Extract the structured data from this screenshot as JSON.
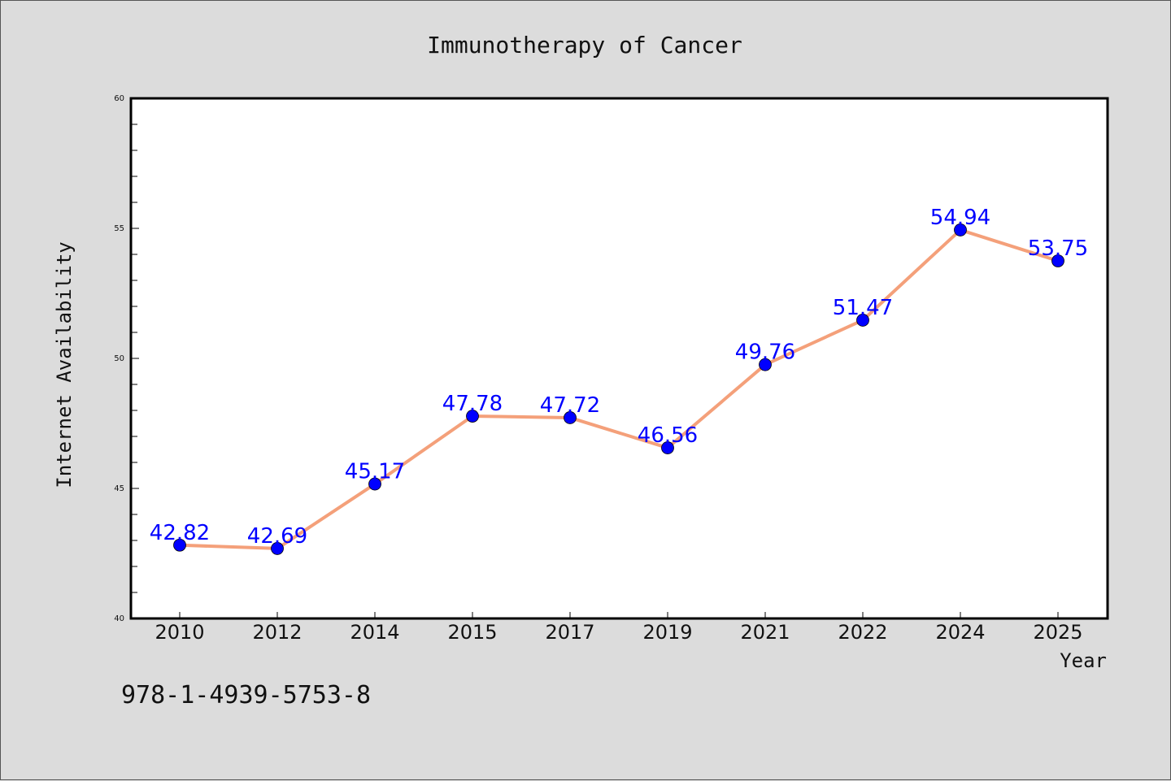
{
  "chart_data": {
    "type": "line",
    "title": "Immunotherapy of Cancer",
    "xlabel": "Year",
    "ylabel": "Internet Availability",
    "categories": [
      "2010",
      "2012",
      "2014",
      "2015",
      "2017",
      "2019",
      "2021",
      "2022",
      "2024",
      "2025"
    ],
    "series": [
      {
        "values": [
          42.82,
          42.69,
          45.17,
          47.78,
          47.72,
          46.56,
          49.76,
          51.47,
          54.94,
          53.75
        ],
        "labels": [
          "42.82",
          "42.69",
          "45.17",
          "47.78",
          "47.72",
          "46.56",
          "49.76",
          "51.47",
          "54.94",
          "53.75"
        ],
        "line_color": "#f4a07a",
        "marker_color": "#0000ff",
        "label_color": "#0000ff"
      }
    ],
    "ylim": [
      40,
      60
    ],
    "yticks": [
      "40",
      "45",
      "50",
      "55",
      "60"
    ],
    "grid": false,
    "legend": "none"
  },
  "footer_text": "978-1-4939-5753-8"
}
